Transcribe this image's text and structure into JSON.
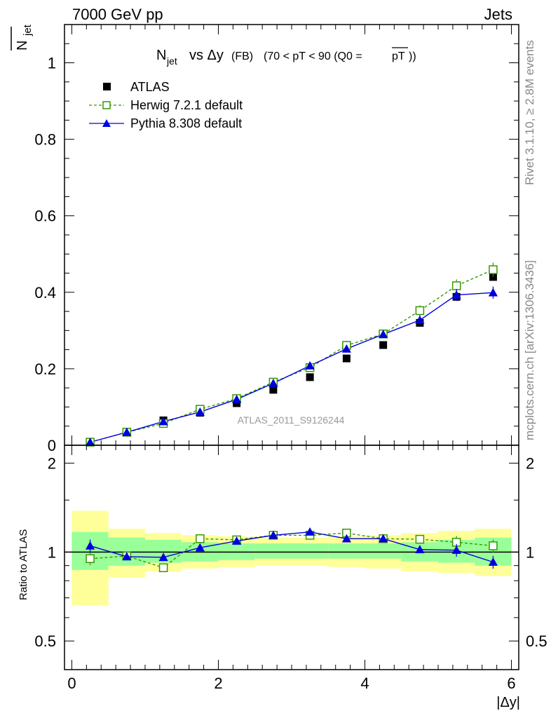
{
  "header": {
    "left": "7000 GeV pp",
    "right": "Jets"
  },
  "plot_title": {
    "main": "N",
    "sub": "jet",
    "rest": " vs Δy",
    "fb": " (FB) ",
    "range": "(70 < pT <  90 (Q0 =",
    "pt": "pT",
    "close": "))"
  },
  "side_labels": {
    "rivet": "Rivet 3.1.10, ≥ 2.8M events",
    "mcplots": "mcplots.cern.ch [arXiv:1306.3436]"
  },
  "watermark": "ATLAS_2011_S9126244",
  "y_label_main": {
    "base": "N",
    "sub": "jet"
  },
  "y_label_ratio": "Ratio to ATLAS",
  "x_label": "|Δy|",
  "legend": [
    {
      "label": "ATLAS"
    },
    {
      "label": "Herwig 7.2.1 default"
    },
    {
      "label": "Pythia 8.308 default"
    }
  ],
  "colors": {
    "atlas": "#000000",
    "herwig": "#339900",
    "pythia": "#0000dd",
    "band_green": "#99ff99",
    "band_yellow": "#ffff99"
  },
  "chart_data": [
    {
      "type": "scatter",
      "title": "N_jet vs Δy (FB) (70 < pT <  90 (Q0 =pT))",
      "xlabel": "|Δy|",
      "ylabel": "N_jet",
      "xlim": [
        -0.1,
        6.1
      ],
      "ylim": [
        0,
        1.1
      ],
      "y_ticks": [
        "0",
        "0.2",
        "0.4",
        "0.6",
        "0.8",
        "1"
      ],
      "x": [
        0.25,
        0.75,
        1.25,
        1.75,
        2.25,
        2.75,
        3.25,
        3.75,
        4.25,
        4.75,
        5.25,
        5.75
      ],
      "series": [
        {
          "name": "ATLAS",
          "values": [
            0.008,
            0.035,
            0.065,
            0.085,
            0.11,
            0.145,
            0.178,
            0.227,
            0.262,
            0.32,
            0.388,
            0.44
          ]
        },
        {
          "name": "Herwig 7.2.1 default",
          "values": [
            0.008,
            0.034,
            0.057,
            0.094,
            0.122,
            0.165,
            0.203,
            0.261,
            0.291,
            0.352,
            0.417,
            0.459
          ]
        },
        {
          "name": "Pythia 8.308 default",
          "values": [
            0.008,
            0.034,
            0.062,
            0.087,
            0.12,
            0.162,
            0.208,
            0.252,
            0.29,
            0.327,
            0.393,
            0.399
          ]
        }
      ]
    },
    {
      "type": "line",
      "ylabel": "Ratio to ATLAS",
      "xlabel": "|Δy|",
      "xlim": [
        -0.1,
        6.1
      ],
      "ylim": [
        0.4,
        2.3
      ],
      "log_y": true,
      "y_ticks": [
        "0.5",
        "1",
        "2"
      ],
      "x_ticks": [
        "0",
        "2",
        "4",
        "6"
      ],
      "x": [
        0.25,
        0.75,
        1.25,
        1.75,
        2.25,
        2.75,
        3.25,
        3.75,
        4.25,
        4.75,
        5.25,
        5.75
      ],
      "series": [
        {
          "name": "Herwig 7.2.1 default",
          "values": [
            0.95,
            0.97,
            0.885,
            1.11,
            1.1,
            1.14,
            1.14,
            1.16,
            1.11,
            1.105,
            1.08,
            1.05
          ]
        },
        {
          "name": "Pythia 8.308 default",
          "values": [
            1.05,
            0.965,
            0.96,
            1.035,
            1.09,
            1.14,
            1.17,
            1.11,
            1.11,
            1.02,
            1.015,
            0.925
          ]
        }
      ],
      "bands": {
        "green": [
          [
            0.87,
            1.17
          ],
          [
            0.9,
            1.12
          ],
          [
            0.92,
            1.1
          ],
          [
            0.93,
            1.08
          ],
          [
            0.94,
            1.07
          ],
          [
            0.95,
            1.07
          ],
          [
            0.95,
            1.07
          ],
          [
            0.95,
            1.07
          ],
          [
            0.95,
            1.07
          ],
          [
            0.93,
            1.08
          ],
          [
            0.92,
            1.1
          ],
          [
            0.9,
            1.12
          ]
        ],
        "yellow": [
          [
            0.66,
            1.38
          ],
          [
            0.82,
            1.2
          ],
          [
            0.86,
            1.16
          ],
          [
            0.88,
            1.14
          ],
          [
            0.89,
            1.13
          ],
          [
            0.9,
            1.12
          ],
          [
            0.9,
            1.12
          ],
          [
            0.89,
            1.13
          ],
          [
            0.88,
            1.14
          ],
          [
            0.86,
            1.16
          ],
          [
            0.85,
            1.18
          ],
          [
            0.83,
            1.2
          ]
        ]
      }
    }
  ]
}
